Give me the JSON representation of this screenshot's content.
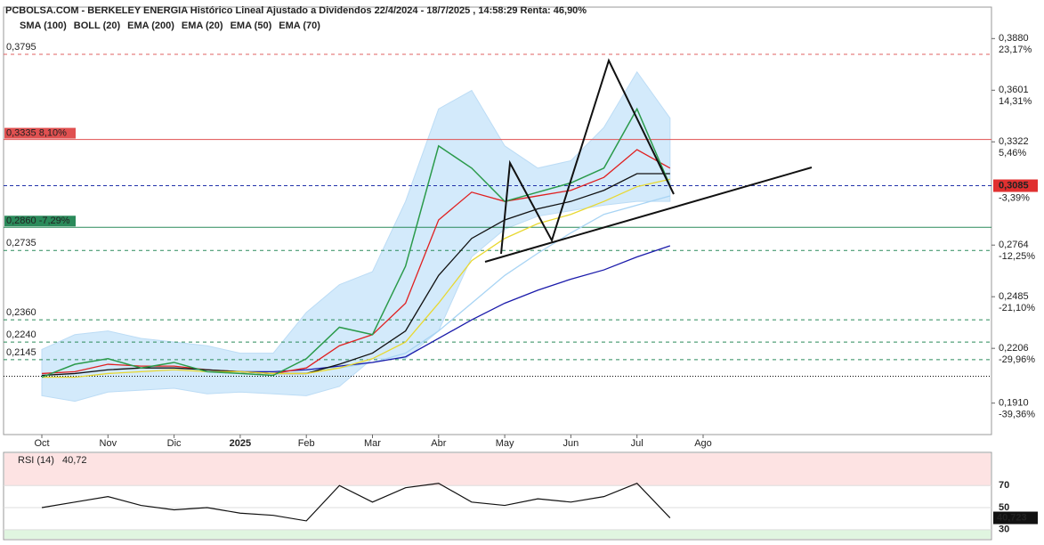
{
  "chart_data": {
    "type": "line",
    "title": "PCBOLSA.COM - BERKELEY ENERGIA Histórico Lineal Ajustado a Dividendos 22/4/2024 - 18/7/2025 , 14:58:29 Renta: 46,90%",
    "categories": [
      "Oct",
      null,
      "Nov",
      null,
      "Dic",
      null,
      "2025",
      null,
      "Feb",
      null,
      "Mar",
      null,
      "Abr",
      null,
      "May",
      null,
      "Jun",
      null,
      "Jul",
      null,
      "Ago"
    ],
    "ylim": [
      0.174,
      0.405
    ],
    "yticks": [
      {
        "value": 0.388,
        "label": "0,3880",
        "change": "23,17%",
        "change_color": "#2a9a4a"
      },
      {
        "value": 0.3601,
        "label": "0,3601",
        "change": "14,31%",
        "change_color": "#2a9a4a"
      },
      {
        "value": 0.3322,
        "label": "0,3322",
        "change": "5,46%",
        "change_color": "#2a9a4a"
      },
      {
        "value": 0.2764,
        "label": "0,2764",
        "change": "-12,25%",
        "change_color": "#e04040"
      },
      {
        "value": 0.2485,
        "label": "0,2485",
        "change": "-21,10%",
        "change_color": "#e04040"
      },
      {
        "value": 0.2206,
        "label": "0,2206",
        "change": "-29,96%",
        "change_color": "#e04040"
      },
      {
        "value": 0.191,
        "label": "0,1910",
        "change": "-39,36%",
        "change_color": "#e04040"
      }
    ],
    "current": {
      "value": 0.3085,
      "label": "0,3085",
      "change": "-3,39%",
      "color": "#e03030",
      "line_color": "#2233aa"
    },
    "levels": [
      {
        "value": 0.3795,
        "label": "0,3795",
        "color": "#e06060",
        "style": "dashed"
      },
      {
        "value": 0.3335,
        "label": "0,3335  8,10%",
        "color": "#e05050",
        "style": "solid",
        "boxed": true
      },
      {
        "value": 0.286,
        "label": "0,2860  -7,29%",
        "color": "#2a8a5a",
        "style": "solid",
        "boxed": true
      },
      {
        "value": 0.2735,
        "label": "0,2735",
        "color": "#2a8a5a",
        "style": "dashed"
      },
      {
        "value": 0.236,
        "label": "0,2360",
        "color": "#2a8a5a",
        "style": "dashed"
      },
      {
        "value": 0.224,
        "label": "0,2240",
        "color": "#2a8a5a",
        "style": "dashed"
      },
      {
        "value": 0.2145,
        "label": "0,2145",
        "color": "#2a8a5a",
        "style": "dashed"
      },
      {
        "value": 0.2055,
        "color": "#000000",
        "style": "dotted"
      }
    ],
    "close": {
      "color": "#2a9a4a",
      "values": [
        0.205,
        0.212,
        0.215,
        0.21,
        0.213,
        0.208,
        0.207,
        0.206,
        0.215,
        0.232,
        0.228,
        0.265,
        0.33,
        0.318,
        0.3,
        0.305,
        0.31,
        0.318,
        0.35,
        0.3085,
        null
      ]
    },
    "bands": {
      "name": "BOLL (20)",
      "color": "#cccccc",
      "fill": "#d3eafb",
      "upper": [
        0.22,
        0.228,
        0.23,
        0.226,
        0.224,
        0.222,
        0.218,
        0.218,
        0.24,
        0.255,
        0.262,
        0.3,
        0.35,
        0.36,
        0.33,
        0.318,
        0.322,
        0.34,
        0.37,
        0.345,
        null
      ],
      "lower": [
        0.195,
        0.192,
        0.197,
        0.198,
        0.199,
        0.196,
        0.197,
        0.196,
        0.195,
        0.2,
        0.215,
        0.215,
        0.23,
        0.27,
        0.285,
        0.292,
        0.295,
        0.298,
        0.3,
        0.3,
        null
      ]
    },
    "series": [
      {
        "name": "SMA (100)",
        "color": "#a8d4f4",
        "values": [
          null,
          null,
          null,
          null,
          null,
          null,
          null,
          null,
          0.209,
          0.21,
          0.213,
          0.218,
          0.23,
          0.245,
          0.26,
          0.272,
          0.283,
          0.293,
          0.298,
          0.303,
          null
        ]
      },
      {
        "name": "EMA (200)",
        "color": "#1a1aaa",
        "values": [
          null,
          null,
          null,
          null,
          null,
          null,
          0.208,
          0.208,
          0.209,
          0.211,
          0.213,
          0.216,
          0.226,
          0.236,
          0.245,
          0.252,
          0.258,
          0.263,
          0.27,
          0.276,
          null
        ]
      },
      {
        "name": "EMA (20)",
        "color": "#e02020",
        "values": [
          0.207,
          0.208,
          0.212,
          0.211,
          0.211,
          0.209,
          0.208,
          0.207,
          0.21,
          0.222,
          0.228,
          0.245,
          0.29,
          0.305,
          0.3,
          0.303,
          0.306,
          0.313,
          0.328,
          0.318,
          null
        ]
      },
      {
        "name": "EMA (50)",
        "color": "#111111",
        "values": [
          0.206,
          0.207,
          0.209,
          0.21,
          0.21,
          0.209,
          0.208,
          0.207,
          0.207,
          0.212,
          0.218,
          0.23,
          0.26,
          0.28,
          0.29,
          0.296,
          0.3,
          0.306,
          0.315,
          0.315,
          null
        ]
      },
      {
        "name": "EMA (70)",
        "color": "#e8d830",
        "values": [
          0.205,
          0.205,
          0.207,
          0.208,
          0.209,
          0.208,
          0.208,
          0.207,
          0.207,
          0.21,
          0.215,
          0.224,
          0.245,
          0.268,
          0.28,
          0.288,
          0.293,
          0.3,
          0.308,
          0.312,
          null
        ]
      }
    ],
    "rsi": {
      "title": "RSI (14)",
      "header_label": "40,72",
      "last_label": "40,723",
      "color": "#111111",
      "ylim": [
        21,
        100
      ],
      "yticks": [
        70,
        50,
        30
      ],
      "values": [
        50,
        55,
        60,
        52,
        48,
        50,
        45,
        43,
        38,
        70,
        55,
        68,
        72,
        55,
        52,
        58,
        55,
        60,
        72,
        40.723,
        null
      ]
    }
  }
}
